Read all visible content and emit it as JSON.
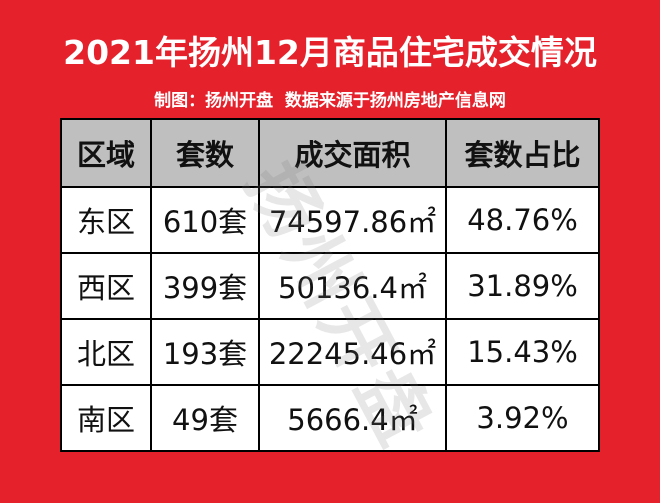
{
  "header": {
    "title": "2021年扬州12月商品住宅成交情况",
    "subtitle": "制图：扬州开盘  数据来源于扬州房地产信息网"
  },
  "table": {
    "columns": [
      "区域",
      "套数",
      "成交面积",
      "套数占比"
    ],
    "rows": [
      [
        "东区",
        "610套",
        "74597.86㎡",
        "48.76%"
      ],
      [
        "西区",
        "399套",
        "50136.4㎡",
        "31.89%"
      ],
      [
        "北区",
        "193套",
        "22245.46㎡",
        "15.43%"
      ],
      [
        "南区",
        "49套",
        "5666.4㎡",
        "3.92%"
      ]
    ]
  },
  "watermark": "扬州开盘"
}
